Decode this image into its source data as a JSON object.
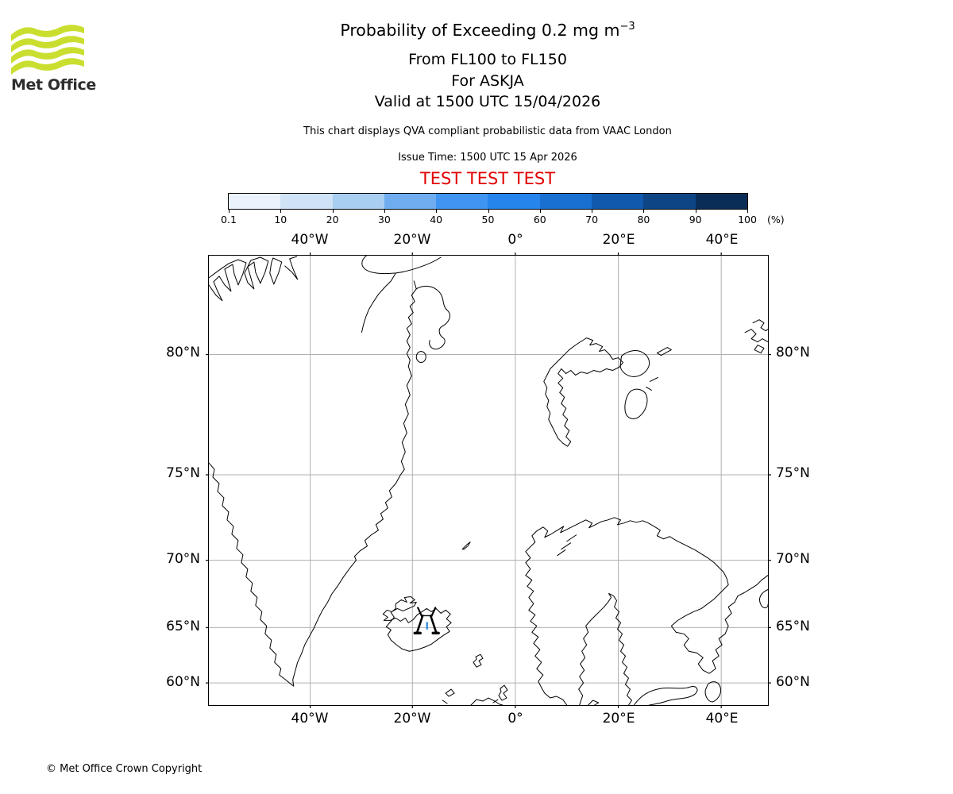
{
  "logo": {
    "text": "Met Office",
    "wave_color": "#c9de2f",
    "text_color": "#2d2d2d"
  },
  "header": {
    "title": "Probability of Exceeding 0.2 mg m",
    "title_sup": "−3",
    "subtitle_lines": [
      "From FL100 to FL150",
      "For ASKJA",
      "Valid at 1500 UTC 15/04/2026"
    ],
    "note": "This chart displays QVA compliant probabilistic data from VAAC London",
    "issue_time": "Issue Time: 1500 UTC 15 Apr 2026",
    "test_banner": "TEST TEST TEST",
    "test_color": "#e10000"
  },
  "colorbar": {
    "tick_labels": [
      "0.1",
      "10",
      "20",
      "30",
      "40",
      "50",
      "60",
      "70",
      "80",
      "90",
      "100"
    ],
    "unit_label": "(%)",
    "segment_colors": [
      "#eaf2fb",
      "#d0e2f6",
      "#a8cef2",
      "#6fadf0",
      "#3f95f1",
      "#2585ec",
      "#1a70d1",
      "#1159ad",
      "#0d4585",
      "#092d56"
    ]
  },
  "map": {
    "top_axis_labels": [
      "40°W",
      "20°W",
      "0°",
      "20°E",
      "40°E"
    ],
    "bottom_axis_labels": [
      "40°W",
      "20°W",
      "0°",
      "20°E",
      "40°E"
    ],
    "left_axis_labels": [
      "80°N",
      "75°N",
      "70°N",
      "65°N",
      "60°N"
    ],
    "right_axis_labels": [
      "80°N",
      "75°N",
      "70°N",
      "65°N",
      "60°N"
    ],
    "grid_color": "#b0b0b0",
    "coastline_color": "#000000",
    "volcano_name": "ASKJA",
    "probability_patch_color": "#3b8de0"
  },
  "footer": {
    "copyright": "© Met Office Crown Copyright"
  }
}
